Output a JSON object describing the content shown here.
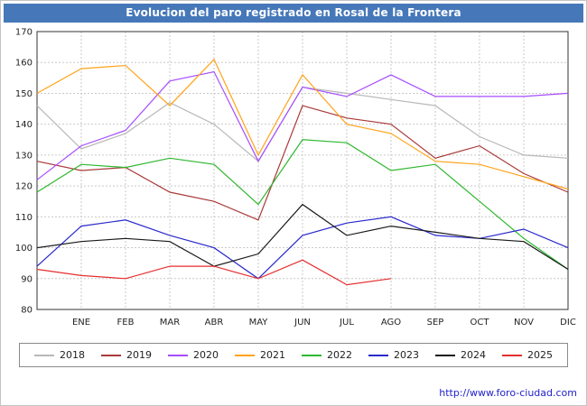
{
  "window": {
    "title": "Evolucion del paro registrado en Rosal de la Frontera"
  },
  "watermark": "http://www.foro-ciudad.com",
  "colors": {
    "title_bar": "#4678b9",
    "title_text": "#ffffff",
    "watermark": "#2222cc",
    "grid": "#c9c9c9",
    "axis_text": "#222222",
    "plot_border": "#333333",
    "plot_background": "#ffffff"
  },
  "chart_data": {
    "type": "line",
    "title": "Evolucion del paro registrado en Rosal de la Frontera",
    "categories": [
      "ENE",
      "FEB",
      "MAR",
      "ABR",
      "MAY",
      "JUN",
      "JUL",
      "AGO",
      "SEP",
      "OCT",
      "NOV",
      "DIC"
    ],
    "ylabel": "",
    "xlabel": "",
    "ylim": [
      80,
      170
    ],
    "ytick_step": 10,
    "grid": true,
    "legend_position": "bottom",
    "series": [
      {
        "name": "2018",
        "color": "#b8b8b8",
        "start": 146,
        "values": [
          132,
          137,
          147,
          140,
          128,
          152,
          150,
          148,
          146,
          136,
          130,
          129
        ]
      },
      {
        "name": "2019",
        "color": "#aa3939",
        "start": 128,
        "values": [
          125,
          126,
          118,
          115,
          109,
          146,
          142,
          140,
          129,
          133,
          124,
          118
        ]
      },
      {
        "name": "2020",
        "color": "#a64dff",
        "start": 122,
        "values": [
          133,
          138,
          154,
          157,
          128,
          152,
          149,
          156,
          149,
          149,
          149,
          150
        ]
      },
      {
        "name": "2021",
        "color": "#ffa31a",
        "start": 150,
        "values": [
          158,
          159,
          146,
          161,
          130,
          156,
          140,
          137,
          128,
          127,
          123,
          119
        ]
      },
      {
        "name": "2022",
        "color": "#2eb82e",
        "start": 118,
        "values": [
          127,
          126,
          129,
          127,
          114,
          135,
          134,
          125,
          127,
          115,
          103,
          93
        ]
      },
      {
        "name": "2023",
        "color": "#2929cc",
        "start": 94,
        "values": [
          107,
          109,
          104,
          100,
          90,
          104,
          108,
          110,
          104,
          103,
          106,
          100
        ]
      },
      {
        "name": "2024",
        "color": "#1a1a1a",
        "start": 100,
        "values": [
          102,
          103,
          102,
          94,
          98,
          114,
          104,
          107,
          105,
          103,
          102,
          93
        ]
      },
      {
        "name": "2025",
        "color": "#e62e2e",
        "start": 93,
        "values": [
          91,
          90,
          94,
          94,
          90,
          96,
          88,
          90
        ]
      }
    ]
  }
}
